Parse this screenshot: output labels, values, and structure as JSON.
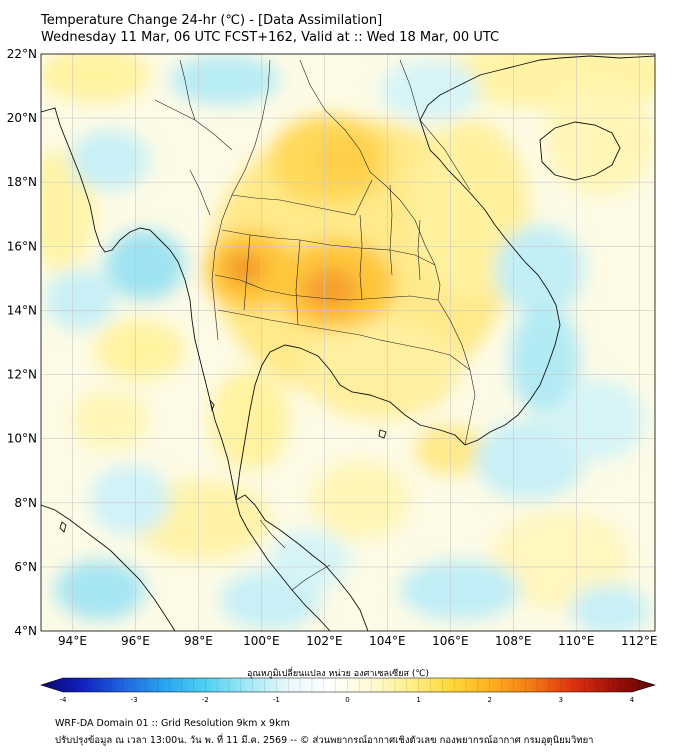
{
  "title": {
    "line1": "Temperature Change 24-hr (℃) - [Data Assimilation]",
    "line2": "Wednesday 11 Mar, 06 UTC FCST+162, Valid at :: Wed 18 Mar, 00 UTC"
  },
  "map": {
    "lon_range": [
      93,
      112.5
    ],
    "lat_range": [
      4,
      22
    ],
    "lat_labels": [
      "22°N",
      "20°N",
      "18°N",
      "16°N",
      "14°N",
      "12°N",
      "10°N",
      "8°N",
      "6°N",
      "4°N"
    ],
    "lat_values": [
      22,
      20,
      18,
      16,
      14,
      12,
      10,
      8,
      6,
      4
    ],
    "lon_labels": [
      "94°E",
      "96°E",
      "98°E",
      "100°E",
      "102°E",
      "104°E",
      "106°E",
      "108°E",
      "110°E",
      "112°E"
    ],
    "lon_values": [
      94,
      96,
      98,
      100,
      102,
      104,
      106,
      108,
      110,
      112
    ],
    "grid": true
  },
  "colorbar": {
    "title": "อุณหภูมิเปลี่ยนแปลง หน่วย องศาเซลเซียส (℃)",
    "min": -4,
    "max": 4,
    "tick_values": [
      -4,
      -3,
      -2,
      -1,
      0,
      1,
      2,
      3,
      4
    ],
    "tick_labels": [
      "-4",
      "-3",
      "-2",
      "-1",
      "0",
      "1",
      "2",
      "3",
      "4"
    ],
    "colors": [
      "#08086b",
      "#1020c0",
      "#1e64e0",
      "#2aa4f0",
      "#4cd0f4",
      "#9ee8f6",
      "#e6f7fa",
      "#ffffff",
      "#fffbd8",
      "#fff08c",
      "#ffd83a",
      "#ffb020",
      "#f27a14",
      "#e03010",
      "#a01008",
      "#5a0404"
    ]
  },
  "footer": {
    "line1": "WRF-DA Domain 01 :: Grid Resolution 9km x 9km",
    "line2": "ปรับปรุงข้อมูล ณ เวลา 13:00น. วัน พ. ที่ 11 มี.ค. 2569 -- © ส่วนพยากรณ์อากาศเชิงตัวเลข กองพยากรณ์อากาศ กรมอุตุนิยมวิทยา"
  }
}
